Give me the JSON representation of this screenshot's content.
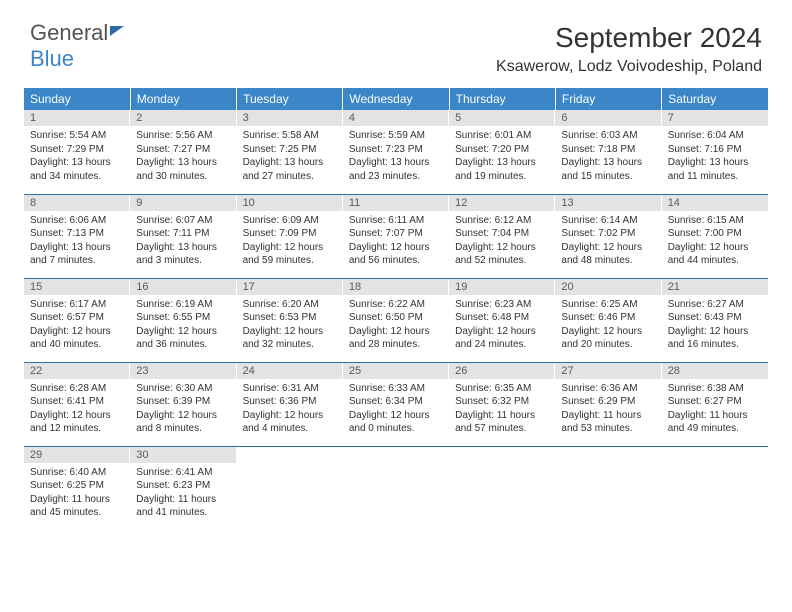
{
  "brand": {
    "part1": "General",
    "part2": "Blue"
  },
  "title": "September 2024",
  "location": "Ksawerow, Lodz Voivodeship, Poland",
  "colors": {
    "header_bg": "#3a86c8",
    "header_text": "#ffffff",
    "daynum_bg": "#e3e3e3",
    "daynum_text": "#5a5a5a",
    "border": "#2f6aa8",
    "body_text": "#333333",
    "background": "#ffffff"
  },
  "typography": {
    "title_fontsize": 28,
    "location_fontsize": 16,
    "weekday_fontsize": 12,
    "daynum_fontsize": 11,
    "content_fontsize": 10
  },
  "weekdays": [
    "Sunday",
    "Monday",
    "Tuesday",
    "Wednesday",
    "Thursday",
    "Friday",
    "Saturday"
  ],
  "weeks": [
    [
      {
        "day": "1",
        "sunrise": "Sunrise: 5:54 AM",
        "sunset": "Sunset: 7:29 PM",
        "daylight1": "Daylight: 13 hours",
        "daylight2": "and 34 minutes."
      },
      {
        "day": "2",
        "sunrise": "Sunrise: 5:56 AM",
        "sunset": "Sunset: 7:27 PM",
        "daylight1": "Daylight: 13 hours",
        "daylight2": "and 30 minutes."
      },
      {
        "day": "3",
        "sunrise": "Sunrise: 5:58 AM",
        "sunset": "Sunset: 7:25 PM",
        "daylight1": "Daylight: 13 hours",
        "daylight2": "and 27 minutes."
      },
      {
        "day": "4",
        "sunrise": "Sunrise: 5:59 AM",
        "sunset": "Sunset: 7:23 PM",
        "daylight1": "Daylight: 13 hours",
        "daylight2": "and 23 minutes."
      },
      {
        "day": "5",
        "sunrise": "Sunrise: 6:01 AM",
        "sunset": "Sunset: 7:20 PM",
        "daylight1": "Daylight: 13 hours",
        "daylight2": "and 19 minutes."
      },
      {
        "day": "6",
        "sunrise": "Sunrise: 6:03 AM",
        "sunset": "Sunset: 7:18 PM",
        "daylight1": "Daylight: 13 hours",
        "daylight2": "and 15 minutes."
      },
      {
        "day": "7",
        "sunrise": "Sunrise: 6:04 AM",
        "sunset": "Sunset: 7:16 PM",
        "daylight1": "Daylight: 13 hours",
        "daylight2": "and 11 minutes."
      }
    ],
    [
      {
        "day": "8",
        "sunrise": "Sunrise: 6:06 AM",
        "sunset": "Sunset: 7:13 PM",
        "daylight1": "Daylight: 13 hours",
        "daylight2": "and 7 minutes."
      },
      {
        "day": "9",
        "sunrise": "Sunrise: 6:07 AM",
        "sunset": "Sunset: 7:11 PM",
        "daylight1": "Daylight: 13 hours",
        "daylight2": "and 3 minutes."
      },
      {
        "day": "10",
        "sunrise": "Sunrise: 6:09 AM",
        "sunset": "Sunset: 7:09 PM",
        "daylight1": "Daylight: 12 hours",
        "daylight2": "and 59 minutes."
      },
      {
        "day": "11",
        "sunrise": "Sunrise: 6:11 AM",
        "sunset": "Sunset: 7:07 PM",
        "daylight1": "Daylight: 12 hours",
        "daylight2": "and 56 minutes."
      },
      {
        "day": "12",
        "sunrise": "Sunrise: 6:12 AM",
        "sunset": "Sunset: 7:04 PM",
        "daylight1": "Daylight: 12 hours",
        "daylight2": "and 52 minutes."
      },
      {
        "day": "13",
        "sunrise": "Sunrise: 6:14 AM",
        "sunset": "Sunset: 7:02 PM",
        "daylight1": "Daylight: 12 hours",
        "daylight2": "and 48 minutes."
      },
      {
        "day": "14",
        "sunrise": "Sunrise: 6:15 AM",
        "sunset": "Sunset: 7:00 PM",
        "daylight1": "Daylight: 12 hours",
        "daylight2": "and 44 minutes."
      }
    ],
    [
      {
        "day": "15",
        "sunrise": "Sunrise: 6:17 AM",
        "sunset": "Sunset: 6:57 PM",
        "daylight1": "Daylight: 12 hours",
        "daylight2": "and 40 minutes."
      },
      {
        "day": "16",
        "sunrise": "Sunrise: 6:19 AM",
        "sunset": "Sunset: 6:55 PM",
        "daylight1": "Daylight: 12 hours",
        "daylight2": "and 36 minutes."
      },
      {
        "day": "17",
        "sunrise": "Sunrise: 6:20 AM",
        "sunset": "Sunset: 6:53 PM",
        "daylight1": "Daylight: 12 hours",
        "daylight2": "and 32 minutes."
      },
      {
        "day": "18",
        "sunrise": "Sunrise: 6:22 AM",
        "sunset": "Sunset: 6:50 PM",
        "daylight1": "Daylight: 12 hours",
        "daylight2": "and 28 minutes."
      },
      {
        "day": "19",
        "sunrise": "Sunrise: 6:23 AM",
        "sunset": "Sunset: 6:48 PM",
        "daylight1": "Daylight: 12 hours",
        "daylight2": "and 24 minutes."
      },
      {
        "day": "20",
        "sunrise": "Sunrise: 6:25 AM",
        "sunset": "Sunset: 6:46 PM",
        "daylight1": "Daylight: 12 hours",
        "daylight2": "and 20 minutes."
      },
      {
        "day": "21",
        "sunrise": "Sunrise: 6:27 AM",
        "sunset": "Sunset: 6:43 PM",
        "daylight1": "Daylight: 12 hours",
        "daylight2": "and 16 minutes."
      }
    ],
    [
      {
        "day": "22",
        "sunrise": "Sunrise: 6:28 AM",
        "sunset": "Sunset: 6:41 PM",
        "daylight1": "Daylight: 12 hours",
        "daylight2": "and 12 minutes."
      },
      {
        "day": "23",
        "sunrise": "Sunrise: 6:30 AM",
        "sunset": "Sunset: 6:39 PM",
        "daylight1": "Daylight: 12 hours",
        "daylight2": "and 8 minutes."
      },
      {
        "day": "24",
        "sunrise": "Sunrise: 6:31 AM",
        "sunset": "Sunset: 6:36 PM",
        "daylight1": "Daylight: 12 hours",
        "daylight2": "and 4 minutes."
      },
      {
        "day": "25",
        "sunrise": "Sunrise: 6:33 AM",
        "sunset": "Sunset: 6:34 PM",
        "daylight1": "Daylight: 12 hours",
        "daylight2": "and 0 minutes."
      },
      {
        "day": "26",
        "sunrise": "Sunrise: 6:35 AM",
        "sunset": "Sunset: 6:32 PM",
        "daylight1": "Daylight: 11 hours",
        "daylight2": "and 57 minutes."
      },
      {
        "day": "27",
        "sunrise": "Sunrise: 6:36 AM",
        "sunset": "Sunset: 6:29 PM",
        "daylight1": "Daylight: 11 hours",
        "daylight2": "and 53 minutes."
      },
      {
        "day": "28",
        "sunrise": "Sunrise: 6:38 AM",
        "sunset": "Sunset: 6:27 PM",
        "daylight1": "Daylight: 11 hours",
        "daylight2": "and 49 minutes."
      }
    ],
    [
      {
        "day": "29",
        "sunrise": "Sunrise: 6:40 AM",
        "sunset": "Sunset: 6:25 PM",
        "daylight1": "Daylight: 11 hours",
        "daylight2": "and 45 minutes."
      },
      {
        "day": "30",
        "sunrise": "Sunrise: 6:41 AM",
        "sunset": "Sunset: 6:23 PM",
        "daylight1": "Daylight: 11 hours",
        "daylight2": "and 41 minutes."
      },
      null,
      null,
      null,
      null,
      null
    ]
  ]
}
